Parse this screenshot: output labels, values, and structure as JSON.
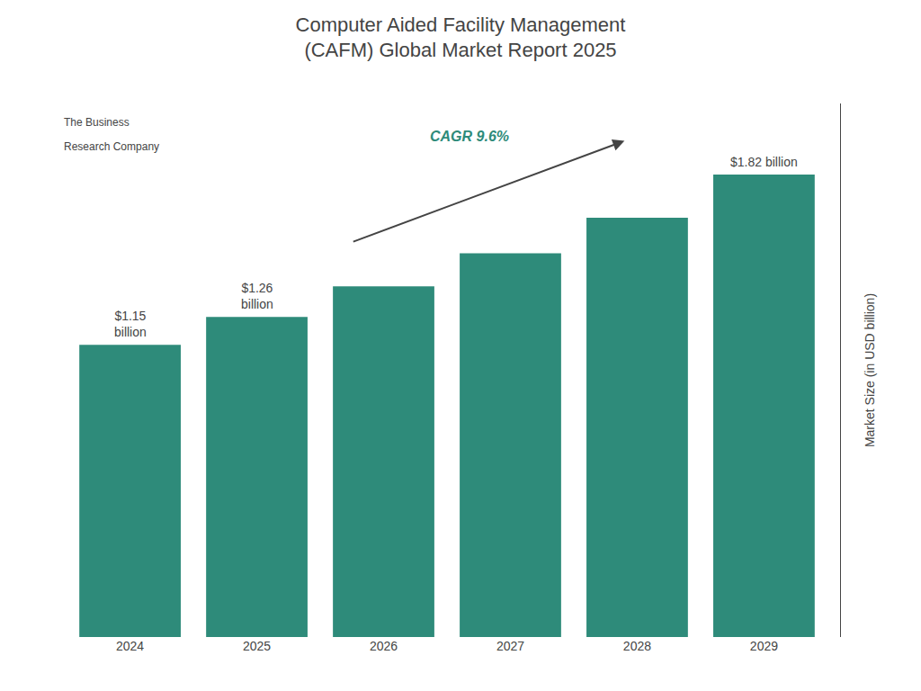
{
  "chart_data": {
    "type": "bar",
    "title": "Computer Aided Facility Management\n(CAFM) Global Market Report 2025",
    "categories": [
      "2024",
      "2025",
      "2026",
      "2027",
      "2028",
      "2029"
    ],
    "values": [
      1.15,
      1.26,
      1.38,
      1.51,
      1.65,
      1.82
    ],
    "color": "#2e8b7a",
    "ylabel": "Market Size (in USD billion)",
    "ylim": [
      0,
      2.1
    ],
    "yticks": [],
    "tick_labels": "x",
    "grid": false,
    "annotations": [
      {
        "text": "$1.15\nbillion",
        "category": "2024"
      },
      {
        "text": "$1.26\nbillion",
        "category": "2025"
      },
      {
        "text": "$1.82 billion",
        "category": "2029"
      },
      {
        "text": "CAGR 9.6%",
        "arrow": {
          "from": "2026",
          "to": "2028"
        }
      },
      {
        "text": "The Business"
      },
      {
        "text": "Research Company"
      }
    ]
  }
}
